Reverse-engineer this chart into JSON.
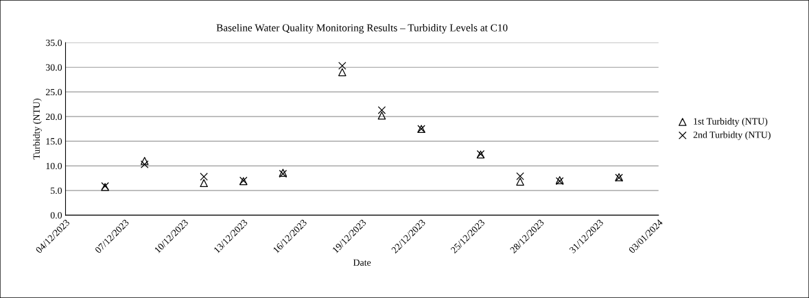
{
  "chart_data": {
    "type": "scatter",
    "title": "Baseline Water Quality Monitoring Results – Turbidity Levels at C10",
    "xlabel": "Date",
    "ylabel": "Turbidty (NTU)",
    "x": [
      "2023-12-06",
      "2023-12-08",
      "2023-12-11",
      "2023-12-13",
      "2023-12-15",
      "2023-12-18",
      "2023-12-20",
      "2023-12-22",
      "2023-12-25",
      "2023-12-27",
      "2023-12-29",
      "2024-01-01"
    ],
    "series": [
      {
        "name": "1st Turbidty (NTU)",
        "color": "#000000",
        "marker": "triangle",
        "values": [
          5.7,
          11.0,
          6.5,
          6.9,
          8.6,
          29.0,
          20.2,
          17.5,
          12.3,
          6.8,
          7.1,
          7.7
        ]
      },
      {
        "name": "2nd Turbidty (NTU)",
        "color": "#000000",
        "marker": "cross",
        "values": [
          5.9,
          10.3,
          7.8,
          7.0,
          8.4,
          30.3,
          21.3,
          17.5,
          12.4,
          7.9,
          6.9,
          7.6
        ]
      }
    ],
    "xlim": [
      "2023-12-04",
      "2024-01-03"
    ],
    "xticks": [
      {
        "value": "2023-12-04",
        "label": "04/12/2023"
      },
      {
        "value": "2023-12-07",
        "label": "07/12/2023"
      },
      {
        "value": "2023-12-10",
        "label": "10/12/2023"
      },
      {
        "value": "2023-12-13",
        "label": "13/12/2023"
      },
      {
        "value": "2023-12-16",
        "label": "16/12/2023"
      },
      {
        "value": "2023-12-19",
        "label": "19/12/2023"
      },
      {
        "value": "2023-12-22",
        "label": "22/12/2023"
      },
      {
        "value": "2023-12-25",
        "label": "25/12/2023"
      },
      {
        "value": "2023-12-28",
        "label": "28/12/2023"
      },
      {
        "value": "2023-12-31",
        "label": "31/12/2023"
      },
      {
        "value": "2024-01-03",
        "label": "03/01/2024"
      }
    ],
    "ylim": [
      0,
      35
    ],
    "yticks": [
      {
        "value": 0,
        "label": "0.0"
      },
      {
        "value": 5,
        "label": "5.0"
      },
      {
        "value": 10,
        "label": "10.0"
      },
      {
        "value": 15,
        "label": "15.0"
      },
      {
        "value": 20,
        "label": "20.0"
      },
      {
        "value": 25,
        "label": "25.0"
      },
      {
        "value": 30,
        "label": "30.0"
      },
      {
        "value": 35,
        "label": "35.0"
      }
    ],
    "grid": "y",
    "legend": "right"
  }
}
